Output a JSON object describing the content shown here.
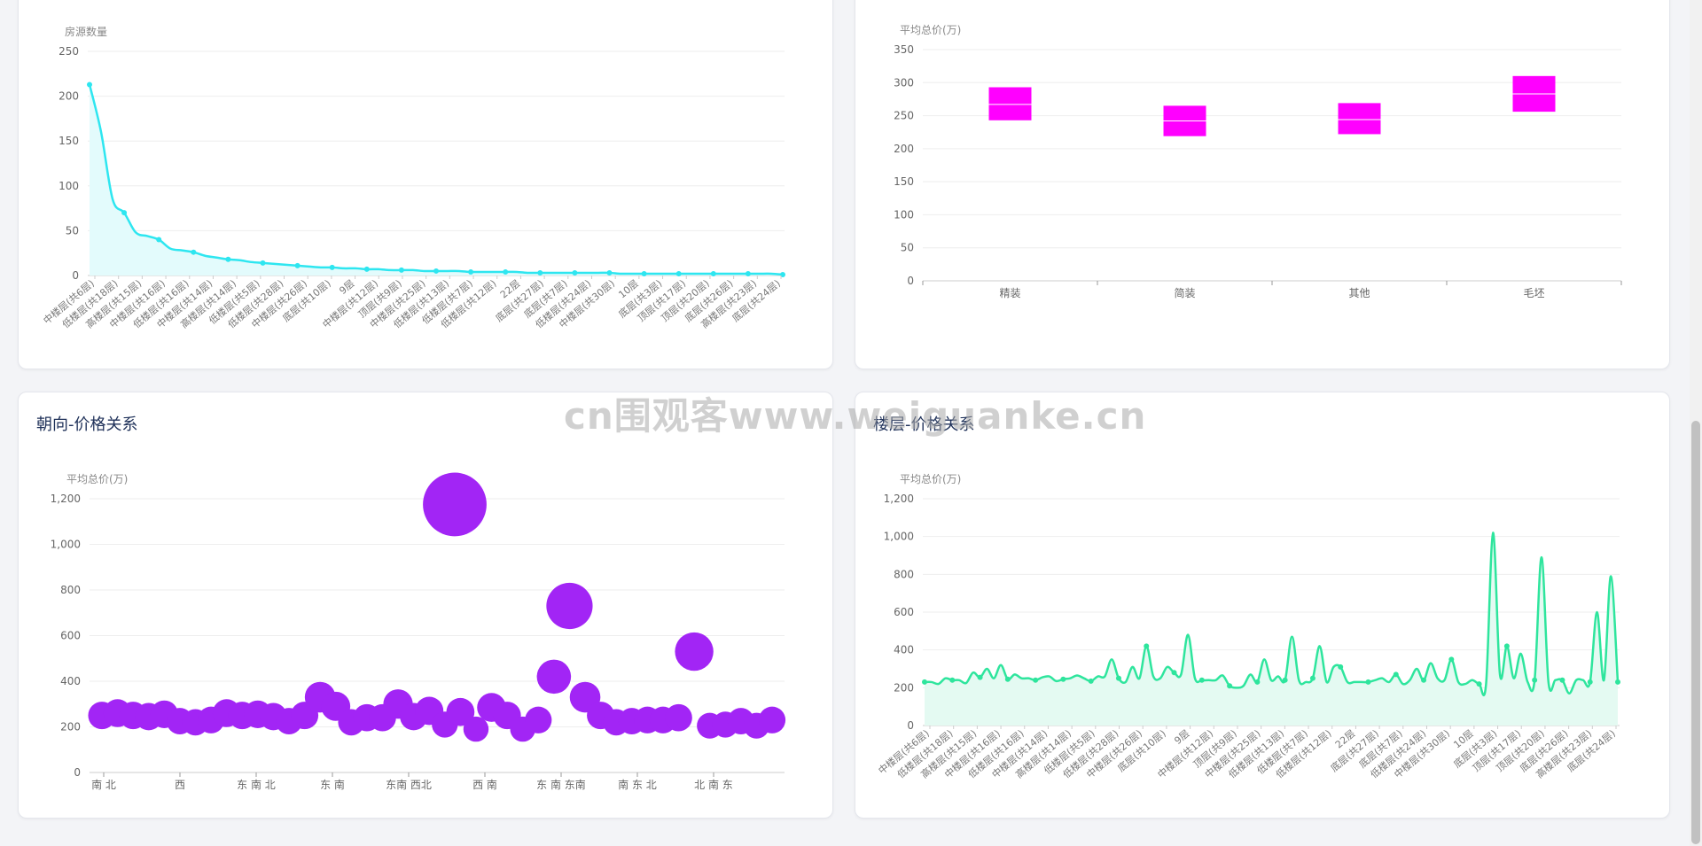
{
  "colors": {
    "line1": "#2ee6f0",
    "area1": "#e3fbfc",
    "box": "#ff00ff",
    "bubble": "#a225f5",
    "line2": "#2ee59d",
    "area2": "#e4faf2",
    "axis": "#999999",
    "grid": "#eeeeee",
    "label": "#666666"
  },
  "watermark": "cn围观客www.weiguanke.cn",
  "cards": {
    "bl_title": "朝向-价格关系",
    "br_title": "楼层-价格关系"
  },
  "chart_data": [
    {
      "id": "floor-count",
      "type": "line",
      "ylabel": "房源数量",
      "ylim": [
        0,
        250
      ],
      "yticks": [
        0,
        50,
        100,
        150,
        200,
        250
      ],
      "tick_labels": [
        "中楼层(共6层)",
        "低楼层(共18层)",
        "高楼层(共15层)",
        "中楼层(共16层)",
        "低楼层(共16层)",
        "中楼层(共14层)",
        "高楼层(共14层)",
        "低楼层(共5层)",
        "低楼层(共28层)",
        "中楼层(共26层)",
        "底层(共10层)",
        "9层",
        "中楼层(共12层)",
        "顶层(共9层)",
        "中楼层(共25层)",
        "低楼层(共13层)",
        "低楼层(共7层)",
        "低楼层(共12层)",
        "22层",
        "底层(共27层)",
        "底层(共7层)",
        "低楼层(共24层)",
        "中楼层(共30层)",
        "10层",
        "底层(共3层)",
        "顶层(共17层)",
        "顶层(共20层)",
        "底层(共26层)",
        "高楼层(共23层)",
        "底层(共24层)"
      ],
      "values": [
        213,
        160,
        85,
        70,
        48,
        44,
        40,
        30,
        28,
        26,
        22,
        20,
        18,
        17,
        15,
        14,
        13,
        12,
        11,
        10,
        9,
        9,
        8,
        8,
        7,
        7,
        6,
        6,
        6,
        5,
        5,
        5,
        5,
        4,
        4,
        4,
        4,
        4,
        3,
        3,
        3,
        3,
        3,
        3,
        3,
        3,
        2,
        2,
        2,
        2,
        2,
        2,
        2,
        2,
        2,
        2,
        2,
        2,
        2,
        2,
        1
      ]
    },
    {
      "id": "decoration-price",
      "type": "boxplot",
      "ylabel": "平均总价(万)",
      "ylim": [
        0,
        350
      ],
      "yticks": [
        0,
        50,
        100,
        150,
        200,
        250,
        300,
        350
      ],
      "categories": [
        "精装",
        "简装",
        "其他",
        "毛坯"
      ],
      "boxes": [
        {
          "q1": 243,
          "median": 267,
          "q3": 293
        },
        {
          "q1": 219,
          "median": 242,
          "q3": 265
        },
        {
          "q1": 222,
          "median": 244,
          "q3": 269
        },
        {
          "q1": 256,
          "median": 283,
          "q3": 310
        }
      ]
    },
    {
      "id": "orientation-price",
      "type": "scatter",
      "ylabel": "平均总价(万)",
      "ylim": [
        0,
        1200
      ],
      "yticks": [
        0,
        200,
        400,
        600,
        800,
        1000,
        1200
      ],
      "tick_labels": [
        "南 北",
        "西",
        "东 南 北",
        "东 南",
        "东南 西北",
        "西 南",
        "东 南 东南",
        "南 东 北",
        "北 南 东"
      ],
      "values": [
        250,
        260,
        250,
        245,
        255,
        225,
        220,
        230,
        260,
        250,
        255,
        245,
        225,
        250,
        330,
        290,
        220,
        240,
        240,
        300,
        245,
        270,
        210,
        265,
        190,
        285,
        250,
        190,
        230,
        420,
        730,
        330,
        250,
        220,
        225,
        230,
        230,
        240,
        530,
        205,
        210,
        225,
        205,
        230,
        1175
      ]
    },
    {
      "id": "floor-price",
      "type": "line",
      "ylabel": "平均总价(万)",
      "ylim": [
        0,
        1200
      ],
      "yticks": [
        0,
        200,
        400,
        600,
        800,
        1000,
        1200
      ],
      "tick_labels": [
        "中楼层(共6层)",
        "低楼层(共18层)",
        "高楼层(共15层)",
        "中楼层(共16层)",
        "低楼层(共16层)",
        "中楼层(共14层)",
        "高楼层(共14层)",
        "低楼层(共5层)",
        "低楼层(共28层)",
        "中楼层(共26层)",
        "底层(共10层)",
        "9层",
        "中楼层(共12层)",
        "顶层(共9层)",
        "中楼层(共25层)",
        "低楼层(共13层)",
        "低楼层(共7层)",
        "低楼层(共12层)",
        "22层",
        "底层(共27层)",
        "底层(共7层)",
        "低楼层(共24层)",
        "中楼层(共30层)",
        "10层",
        "底层(共3层)",
        "顶层(共17层)",
        "顶层(共20层)",
        "底层(共26层)",
        "高楼层(共23层)",
        "底层(共24层)"
      ],
      "values": [
        230,
        230,
        220,
        250,
        240,
        240,
        225,
        280,
        255,
        300,
        250,
        320,
        245,
        270,
        250,
        250,
        240,
        255,
        260,
        235,
        245,
        250,
        265,
        250,
        235,
        260,
        260,
        350,
        250,
        230,
        310,
        250,
        420,
        260,
        250,
        310,
        280,
        270,
        480,
        250,
        240,
        240,
        240,
        265,
        210,
        200,
        210,
        270,
        230,
        350,
        240,
        260,
        240,
        470,
        240,
        230,
        250,
        420,
        230,
        310,
        310,
        230,
        230,
        230,
        230,
        240,
        250,
        230,
        270,
        220,
        240,
        300,
        240,
        330,
        250,
        240,
        350,
        230,
        220,
        240,
        220,
        220,
        1020,
        270,
        420,
        250,
        380,
        230,
        240,
        890,
        230,
        240,
        240,
        170,
        240,
        240,
        230,
        600,
        240,
        790,
        230
      ]
    }
  ]
}
